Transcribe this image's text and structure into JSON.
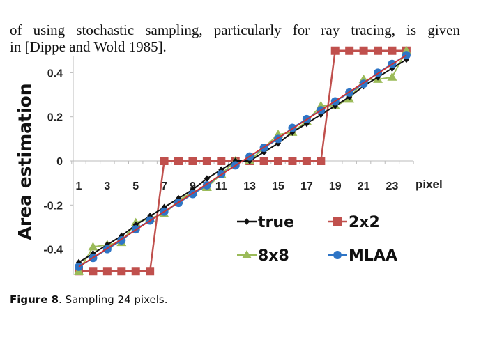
{
  "text": {
    "line1": "of using stochastic sampling, particularly for ray tracing, is given",
    "line2": "in [Dippe and Wold 1985]."
  },
  "caption": {
    "label": "Figure 8",
    "text": ". Sampling 24 pixels."
  },
  "chart_data": {
    "type": "line",
    "ylabel": "Area estimation",
    "xlabel": "pixel",
    "ylim": [
      -0.5,
      0.5
    ],
    "yticks": [
      "0.4",
      "0.2",
      "0",
      "-0.2",
      "-0.4"
    ],
    "ytick_values": [
      0.4,
      0.2,
      0,
      -0.2,
      -0.4
    ],
    "xticks": [
      "1",
      "3",
      "5",
      "7",
      "9",
      "11",
      "13",
      "15",
      "17",
      "19",
      "21",
      "23"
    ],
    "x": [
      1,
      2,
      3,
      4,
      5,
      6,
      7,
      8,
      9,
      10,
      11,
      12,
      13,
      14,
      15,
      16,
      17,
      18,
      19,
      20,
      21,
      22,
      23,
      24
    ],
    "legend_position": "bottom-right",
    "series": [
      {
        "name": "true",
        "color": "#111111",
        "marker": "diamond",
        "values": [
          -0.46,
          -0.42,
          -0.38,
          -0.34,
          -0.29,
          -0.25,
          -0.21,
          -0.17,
          -0.13,
          -0.08,
          -0.04,
          0.0,
          0.0,
          0.04,
          0.08,
          0.13,
          0.17,
          0.21,
          0.25,
          0.29,
          0.34,
          0.38,
          0.42,
          0.46
        ]
      },
      {
        "name": "2x2",
        "color": "#c0504d",
        "marker": "square",
        "values": [
          -0.5,
          -0.5,
          -0.5,
          -0.5,
          -0.5,
          -0.5,
          0,
          0,
          0,
          0,
          0,
          0,
          0,
          0,
          0,
          0,
          0,
          0,
          0.5,
          0.5,
          0.5,
          0.5,
          0.5,
          0.5
        ]
      },
      {
        "name": "8x8",
        "color": "#9bbb59",
        "marker": "triangle",
        "values": [
          -0.5,
          -0.39,
          -0.38,
          -0.37,
          -0.28,
          -0.26,
          -0.24,
          -0.18,
          -0.14,
          -0.12,
          -0.06,
          0.0,
          0.0,
          0.06,
          0.12,
          0.13,
          0.18,
          0.25,
          0.25,
          0.28,
          0.37,
          0.37,
          0.38,
          0.5
        ]
      },
      {
        "name": "MLAA",
        "color": "#2e75c6",
        "marker": "circle",
        "values": [
          -0.48,
          -0.44,
          -0.4,
          -0.36,
          -0.31,
          -0.27,
          -0.23,
          -0.19,
          -0.15,
          -0.11,
          -0.06,
          -0.02,
          0.02,
          0.06,
          0.1,
          0.15,
          0.19,
          0.23,
          0.27,
          0.31,
          0.35,
          0.4,
          0.44,
          0.48
        ]
      }
    ]
  }
}
